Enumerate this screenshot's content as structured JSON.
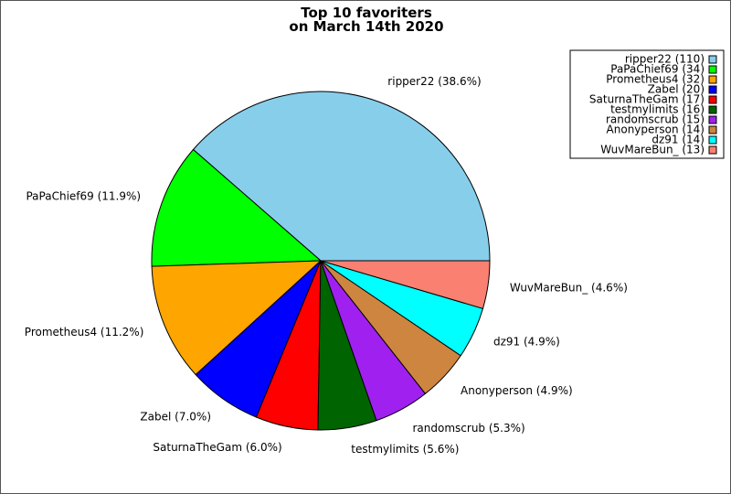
{
  "chart_data": {
    "type": "pie",
    "title": [
      "Top 10 favoriters",
      "on March 14th 2020"
    ],
    "slices": [
      {
        "name": "ripper22",
        "value": 110,
        "percent_label": "38.6%",
        "legend": "ripper22 (110)",
        "color": "#87ceeb"
      },
      {
        "name": "PaPaChief69",
        "value": 34,
        "percent_label": "11.9%",
        "legend": "PaPaChief69 (34)",
        "color": "#00ff00"
      },
      {
        "name": "Prometheus4",
        "value": 32,
        "percent_label": "11.2%",
        "legend": "Prometheus4 (32)",
        "color": "#ffa500"
      },
      {
        "name": "Zabel",
        "value": 20,
        "percent_label": "7.0%",
        "legend": "Zabel (20)",
        "color": "#0000ff"
      },
      {
        "name": "SaturnaTheGam",
        "value": 17,
        "percent_label": "6.0%",
        "legend": "SaturnaTheGam (17)",
        "color": "#ff0000"
      },
      {
        "name": "testmylimits",
        "value": 16,
        "percent_label": "5.6%",
        "legend": "testmylimits (16)",
        "color": "#006400"
      },
      {
        "name": "randomscrub",
        "value": 15,
        "percent_label": "5.3%",
        "legend": "randomscrub (15)",
        "color": "#a020f0"
      },
      {
        "name": "Anonyperson",
        "value": 14,
        "percent_label": "4.9%",
        "legend": "Anonyperson (14)",
        "color": "#cd853f"
      },
      {
        "name": "dz91",
        "value": 14,
        "percent_label": "4.9%",
        "legend": "dz91 (14)",
        "color": "#00ffff"
      },
      {
        "name": "WuvMareBun_",
        "value": 13,
        "percent_label": "4.6%",
        "legend": "WuvMareBun_ (13)",
        "color": "#fa8072"
      }
    ],
    "legend_position": "top-right",
    "start_angle": "3 o'clock",
    "direction": "counterclockwise"
  }
}
